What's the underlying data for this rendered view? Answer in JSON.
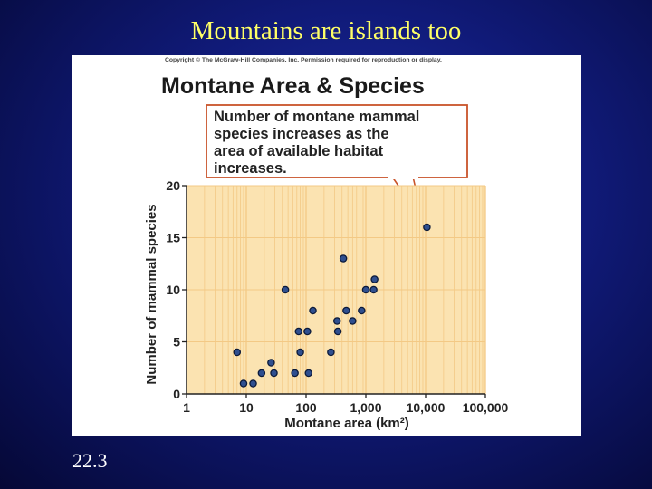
{
  "slide": {
    "title": "Mountains are islands too",
    "number": "22.3"
  },
  "figure": {
    "copyright": "Copyright © The McGraw-Hill Companies, Inc. Permission required for reproduction or display.",
    "heading": "Montane Area & Species",
    "callout_lines": [
      "Number of montane mammal",
      "species increases as the",
      "area of available habitat",
      "increases."
    ]
  },
  "colors": {
    "plot_background": "#fbe3b1",
    "gridline": "#f3c985",
    "callout_border": "#c9532a",
    "point_fill": "#2f4f8f",
    "title_text": "#ffff66"
  },
  "chart_data": {
    "type": "scatter",
    "xscale": "log",
    "xlabel": "Montane area (km²)",
    "ylabel": "Number of mammal species",
    "xlim": [
      1,
      100000
    ],
    "ylim": [
      0,
      20
    ],
    "x_ticks": [
      1,
      10,
      100,
      1000,
      10000,
      100000
    ],
    "x_tick_labels": [
      "1",
      "10",
      "100",
      "1,000",
      "10,000",
      "100,000"
    ],
    "y_ticks": [
      0,
      5,
      10,
      15,
      20
    ],
    "y_tick_labels": [
      "0",
      "5",
      "10",
      "15",
      "20"
    ],
    "grid": true,
    "points": [
      {
        "x": 7,
        "y": 4
      },
      {
        "x": 9,
        "y": 1
      },
      {
        "x": 13,
        "y": 1
      },
      {
        "x": 18,
        "y": 2
      },
      {
        "x": 26,
        "y": 3
      },
      {
        "x": 29,
        "y": 2
      },
      {
        "x": 45,
        "y": 10
      },
      {
        "x": 65,
        "y": 2
      },
      {
        "x": 75,
        "y": 6
      },
      {
        "x": 80,
        "y": 4
      },
      {
        "x": 105,
        "y": 6
      },
      {
        "x": 110,
        "y": 2
      },
      {
        "x": 130,
        "y": 8
      },
      {
        "x": 260,
        "y": 4
      },
      {
        "x": 330,
        "y": 7
      },
      {
        "x": 340,
        "y": 6
      },
      {
        "x": 420,
        "y": 13
      },
      {
        "x": 470,
        "y": 8
      },
      {
        "x": 600,
        "y": 7
      },
      {
        "x": 850,
        "y": 8
      },
      {
        "x": 1000,
        "y": 10
      },
      {
        "x": 1350,
        "y": 10
      },
      {
        "x": 1400,
        "y": 11
      },
      {
        "x": 10500,
        "y": 16
      }
    ]
  }
}
